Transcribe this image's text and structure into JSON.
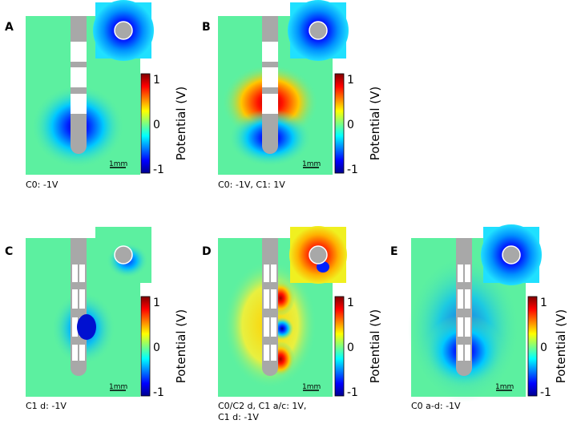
{
  "colorbar": {
    "label": "Potential (V)",
    "ticks": [
      {
        "value": 1,
        "label": "1"
      },
      {
        "value": 0,
        "label": "0"
      },
      {
        "value": -1,
        "label": "-1"
      }
    ],
    "range": [
      -1,
      1
    ],
    "colormap": "jet"
  },
  "scale_bar_label": "1mm",
  "panels": [
    {
      "id": "A",
      "letter": "A",
      "caption_lines": [
        "C0: -1V"
      ]
    },
    {
      "id": "B",
      "letter": "B",
      "caption_lines": [
        "C0: -1V, C1: 1V"
      ]
    },
    {
      "id": "C",
      "letter": "C",
      "caption_lines": [
        "C1 d: -1V"
      ]
    },
    {
      "id": "D",
      "letter": "D",
      "caption_lines": [
        "C0/C2 d, C1 a/c: 1V,",
        "C1 d: -1V"
      ]
    },
    {
      "id": "E",
      "letter": "E",
      "caption_lines": [
        "C0 a-d: -1V"
      ]
    }
  ],
  "colors": {
    "background_field": "#5cf0a0",
    "electrode_gray": "#a8a8a8",
    "electrode_white": "#ffffff"
  }
}
